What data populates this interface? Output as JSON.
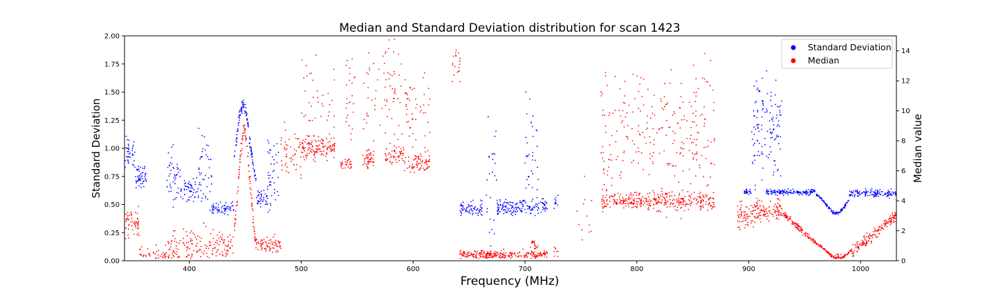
{
  "chart_data": {
    "type": "scatter",
    "title": "Median and Standard Deviation distribution for scan 1423",
    "xlabel": "Frequency (MHz)",
    "ylabel": "Standard Deviation",
    "y2label": "Median value",
    "xlim": [
      342,
      1032
    ],
    "ylim": [
      0,
      2.0
    ],
    "y2lim": [
      0,
      15
    ],
    "x_ticks": [
      400,
      500,
      600,
      700,
      800,
      900,
      1000
    ],
    "y_ticks": [
      0.0,
      0.25,
      0.5,
      0.75,
      1.0,
      1.25,
      1.5,
      1.75,
      2.0
    ],
    "y_tick_labels": [
      "0.00",
      "0.25",
      "0.50",
      "0.75",
      "1.00",
      "1.25",
      "1.50",
      "1.75",
      "2.00"
    ],
    "y2_ticks": [
      0,
      2,
      4,
      6,
      8,
      10,
      12,
      14
    ],
    "grid": false,
    "legend_position": "top-right",
    "series": [
      {
        "name": "Standard Deviation",
        "color": "#0000ff",
        "axis": "left",
        "marker": "dot",
        "segments": [
          {
            "x_range": [
              342,
              352
            ],
            "mean": 0.95,
            "spread": 0.14,
            "points": 40
          },
          {
            "x_range": [
              352,
              362
            ],
            "mean": 0.75,
            "spread": 0.08,
            "points": 50
          },
          {
            "x_range": [
              380,
              392
            ],
            "mean": 0.75,
            "spread": 0.2,
            "points": 45
          },
          {
            "x_range": [
              392,
              408
            ],
            "mean": 0.62,
            "spread": 0.08,
            "points": 55
          },
          {
            "x_range": [
              408,
              420
            ],
            "mean": 0.8,
            "spread": 0.35,
            "points": 45
          },
          {
            "x_range": [
              420,
              440
            ],
            "mean": 0.47,
            "spread": 0.05,
            "points": 60
          },
          {
            "x_range": [
              440,
              460
            ],
            "peak": 1.38,
            "peak_x": 448,
            "width": 6,
            "base": 0.6,
            "points": 110
          },
          {
            "x_range": [
              460,
              470
            ],
            "mean": 0.56,
            "spread": 0.06,
            "points": 40
          },
          {
            "x_range": [
              470,
              480
            ],
            "mean": 0.8,
            "spread": 0.3,
            "points": 40
          },
          {
            "x_range": [
              642,
              662
            ],
            "mean": 0.46,
            "spread": 0.06,
            "points": 70
          },
          {
            "x_range": [
              665,
              675
            ],
            "mean": 0.7,
            "spread": 0.45,
            "points": 25
          },
          {
            "x_range": [
              675,
              720
            ],
            "mean": 0.48,
            "spread": 0.06,
            "points": 160
          },
          {
            "x_range": [
              700,
              712
            ],
            "mean": 1.0,
            "spread": 0.5,
            "points": 35
          },
          {
            "x_range": [
              726,
              730
            ],
            "mean": 0.52,
            "spread": 0.05,
            "points": 10
          },
          {
            "x_range": [
              896,
              902
            ],
            "mean": 0.61,
            "spread": 0.02,
            "points": 25
          },
          {
            "x_range": [
              902,
              930
            ],
            "mean": 1.15,
            "spread": 0.45,
            "points": 130
          },
          {
            "x_range": [
              915,
              960
            ],
            "mean": 0.61,
            "spread": 0.02,
            "points": 140
          },
          {
            "x_range": [
              960,
              990
            ],
            "dip": 0.42,
            "dip_x": 978,
            "width": 8,
            "base": 0.6,
            "points": 110
          },
          {
            "x_range": [
              990,
              1032
            ],
            "mean": 0.6,
            "spread": 0.03,
            "points": 140
          }
        ]
      },
      {
        "name": "Median",
        "color": "#ff0000",
        "axis": "right",
        "marker": "dot",
        "segments": [
          {
            "x_range": [
              342,
              355
            ],
            "mean": 2.5,
            "spread": 0.8,
            "points": 55
          },
          {
            "x_range": [
              355,
              380
            ],
            "mean": 0.5,
            "spread": 0.4,
            "points": 40
          },
          {
            "x_range": [
              380,
              440
            ],
            "mean": 1.0,
            "spread": 0.9,
            "points": 160
          },
          {
            "x_range": [
              440,
              460
            ],
            "peak": 8.7,
            "peak_x": 449,
            "width": 5,
            "base": 0.5,
            "points": 110
          },
          {
            "x_range": [
              460,
              482
            ],
            "mean": 1.0,
            "spread": 0.5,
            "points": 70
          },
          {
            "x_range": [
              482,
              500
            ],
            "mean": 7.0,
            "spread": 1.5,
            "points": 50
          },
          {
            "x_range": [
              500,
              530
            ],
            "mean": 7.5,
            "spread": 0.6,
            "points": 130
          },
          {
            "x_range": [
              500,
              530
            ],
            "mean": 10.5,
            "spread": 2.5,
            "points": 40
          },
          {
            "x_range": [
              535,
              545
            ],
            "mean": 6.5,
            "spread": 0.3,
            "points": 30
          },
          {
            "x_range": [
              540,
              548
            ],
            "mean": 11,
            "spread": 3,
            "points": 25
          },
          {
            "x_range": [
              555,
              565
            ],
            "mean": 6.8,
            "spread": 0.5,
            "points": 45
          },
          {
            "x_range": [
              555,
              575
            ],
            "mean": 11,
            "spread": 3,
            "points": 30
          },
          {
            "x_range": [
              575,
              592
            ],
            "mean": 7.0,
            "spread": 0.6,
            "points": 55
          },
          {
            "x_range": [
              575,
              592
            ],
            "mean": 11.5,
            "spread": 2.5,
            "points": 40
          },
          {
            "x_range": [
              592,
              615
            ],
            "mean": 6.5,
            "spread": 0.5,
            "points": 70
          },
          {
            "x_range": [
              592,
              615
            ],
            "mean": 10,
            "spread": 2.5,
            "points": 50
          },
          {
            "x_range": [
              635,
              642
            ],
            "mean": 13,
            "spread": 1.5,
            "points": 20
          },
          {
            "x_range": [
              642,
              720
            ],
            "mean": 0.4,
            "spread": 0.25,
            "points": 260
          },
          {
            "x_range": [
              705,
              712
            ],
            "mean": 1.0,
            "spread": 0.4,
            "points": 20
          },
          {
            "x_range": [
              726,
              730
            ],
            "mean": 0.6,
            "spread": 0.4,
            "points": 8
          },
          {
            "x_range": [
              745,
              760
            ],
            "mean": 3.0,
            "spread": 2.0,
            "points": 12
          },
          {
            "x_range": [
              768,
              870
            ],
            "mean": 4.0,
            "spread": 0.5,
            "points": 360
          },
          {
            "x_range": [
              768,
              870
            ],
            "mean": 8.5,
            "spread": 3.5,
            "points": 260
          },
          {
            "x_range": [
              890,
              905
            ],
            "mean": 3.0,
            "spread": 0.8,
            "points": 60
          },
          {
            "x_range": [
              905,
              930
            ],
            "mean": 3.3,
            "spread": 0.6,
            "points": 110
          },
          {
            "x_range": [
              930,
              960
            ],
            "curve": "decline",
            "from": 3.2,
            "to": 1.2,
            "points": 120
          },
          {
            "x_range": [
              960,
              992
            ],
            "dip": 0.15,
            "dip_x": 980,
            "width": 10,
            "base": 1.3,
            "points": 120
          },
          {
            "x_range": [
              992,
              1032
            ],
            "curve": "rise",
            "from": 0.6,
            "to": 3.0,
            "points": 150
          }
        ]
      }
    ]
  }
}
